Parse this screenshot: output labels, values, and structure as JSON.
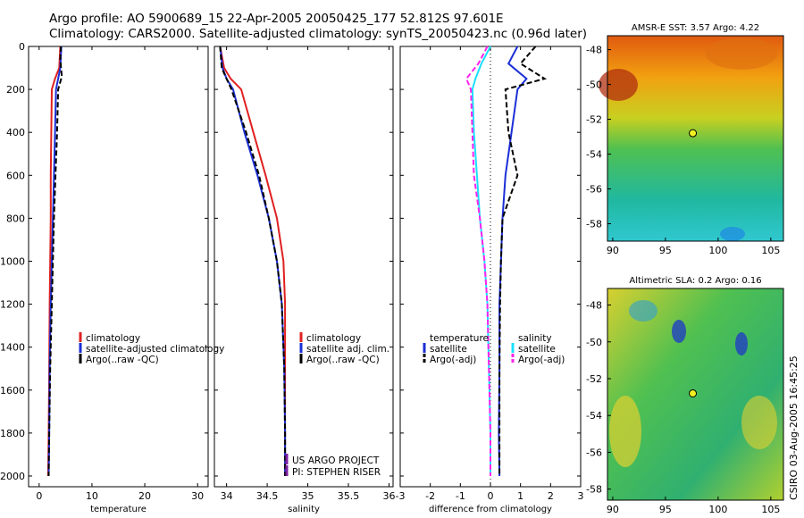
{
  "header": {
    "line1": "Argo profile: AO 5900689_15 22-Apr-2005 20050425_177 52.812S 97.601E",
    "line2": "Climatology: CARS2000. Satellite-adjusted climatology: synTS_20050423.nc (0.96d later)"
  },
  "credit": "CSIRO 03-Aug-2005 16:45:25",
  "colors": {
    "climatology": "#e02020",
    "satellite": "#1a2fd6",
    "argo": "#000000",
    "salinity_sat": "#19e0ff",
    "argo_sal": "#ff22ee",
    "project": "#7a1fa0"
  },
  "chart_data": [
    {
      "type": "line",
      "xlabel": "temperature",
      "ylim": [
        2050,
        0
      ],
      "xlim": [
        -2,
        32
      ],
      "xticks": [
        0,
        10,
        20,
        30
      ],
      "yticks": [
        0,
        200,
        400,
        600,
        800,
        1000,
        1200,
        1400,
        1600,
        1800,
        2000
      ],
      "legend": [
        "climatology",
        "satellite-adjusted climatology",
        "Argo(..raw -QC)"
      ],
      "series": [
        {
          "name": "climatology",
          "style": "solid",
          "color": "#e02020",
          "x": [
            4.0,
            3.8,
            3.0,
            2.4,
            2.3,
            2.2,
            2.2,
            2.1,
            2.0,
            1.9,
            1.8,
            1.7
          ],
          "y": [
            0,
            100,
            150,
            200,
            400,
            600,
            800,
            1000,
            1200,
            1500,
            1800,
            2000
          ]
        },
        {
          "name": "satellite-adjusted climatology",
          "style": "solid",
          "color": "#1a2fd6",
          "x": [
            4.2,
            4.0,
            3.6,
            3.2,
            3.0,
            2.8,
            2.6,
            2.4,
            2.2,
            2.0,
            1.9,
            1.8
          ],
          "y": [
            0,
            100,
            150,
            200,
            400,
            600,
            800,
            1000,
            1200,
            1500,
            1800,
            2000
          ]
        },
        {
          "name": "Argo(..raw -QC)",
          "style": "dashed",
          "color": "#000000",
          "x": [
            4.1,
            4.0,
            4.3,
            3.6,
            3.4,
            3.1,
            2.8,
            2.6,
            2.4,
            2.1,
            1.9,
            1.8
          ],
          "y": [
            0,
            60,
            140,
            200,
            400,
            600,
            800,
            1000,
            1200,
            1500,
            1800,
            2000
          ]
        }
      ]
    },
    {
      "type": "line",
      "xlabel": "salinity",
      "ylim": [
        2050,
        0
      ],
      "xlim": [
        33.85,
        36.05
      ],
      "xticks": [
        34,
        34.5,
        35,
        35.5,
        36
      ],
      "legend": [
        "climatology",
        "satellite adj. clim.",
        "Argo(..raw -QC)"
      ],
      "annotation": [
        "US ARGO PROJECT",
        "PI: STEPHEN RISER"
      ],
      "series": [
        {
          "name": "climatology",
          "style": "solid",
          "color": "#e02020",
          "x": [
            33.92,
            33.97,
            34.05,
            34.18,
            34.33,
            34.48,
            34.62,
            34.7,
            34.72,
            34.72,
            34.72,
            34.72
          ],
          "y": [
            0,
            100,
            150,
            200,
            400,
            600,
            800,
            1000,
            1200,
            1500,
            1800,
            2000
          ]
        },
        {
          "name": "satellite adj. clim.",
          "style": "solid",
          "color": "#1a2fd6",
          "x": [
            33.92,
            33.95,
            34.0,
            34.08,
            34.22,
            34.38,
            34.52,
            34.62,
            34.68,
            34.71,
            34.72,
            34.72
          ],
          "y": [
            0,
            100,
            150,
            200,
            400,
            600,
            800,
            1000,
            1200,
            1500,
            1800,
            2000
          ]
        },
        {
          "name": "Argo(..raw -QC)",
          "style": "dashed",
          "color": "#000000",
          "x": [
            33.92,
            33.94,
            34.0,
            34.06,
            34.24,
            34.4,
            34.52,
            34.62,
            34.68,
            34.71,
            34.72,
            34.72
          ],
          "y": [
            0,
            100,
            150,
            200,
            400,
            600,
            800,
            1000,
            1200,
            1500,
            1800,
            2000
          ]
        }
      ]
    },
    {
      "type": "line",
      "xlabel": "difference from climatology",
      "ylim": [
        2050,
        0
      ],
      "xlim": [
        -3,
        3
      ],
      "xticks": [
        -3,
        -2,
        -1,
        0,
        1,
        2,
        3
      ],
      "legend_left": [
        "temperature",
        "satellite",
        "Argo(-adj)"
      ],
      "legend_right": [
        "salinity",
        "satellite",
        "Argo(-adj)"
      ],
      "series": [
        {
          "name": "satellite",
          "group": "temperature",
          "style": "solid",
          "color": "#1a2fd6",
          "x": [
            0.9,
            0.6,
            1.2,
            0.9,
            0.7,
            0.5,
            0.4,
            0.35,
            0.3,
            0.3,
            0.28,
            0.3
          ],
          "y": [
            0,
            80,
            150,
            200,
            400,
            600,
            800,
            1000,
            1200,
            1500,
            1800,
            2000
          ]
        },
        {
          "name": "Argo(-adj)",
          "group": "temperature",
          "style": "dashed",
          "color": "#000000",
          "x": [
            1.5,
            1.0,
            1.8,
            0.5,
            0.6,
            0.9,
            0.4,
            0.35,
            0.32,
            0.3,
            0.3,
            0.3
          ],
          "y": [
            0,
            80,
            150,
            200,
            400,
            600,
            800,
            1000,
            1200,
            1500,
            1800,
            2000
          ]
        },
        {
          "name": "satellite",
          "group": "salinity",
          "style": "solid",
          "color": "#19e0ff",
          "x": [
            0.0,
            -0.3,
            -0.5,
            -0.6,
            -0.55,
            -0.45,
            -0.35,
            -0.2,
            -0.1,
            -0.05,
            0.0,
            0.0
          ],
          "y": [
            0,
            80,
            150,
            200,
            400,
            600,
            800,
            1000,
            1200,
            1500,
            1800,
            2000
          ]
        },
        {
          "name": "Argo(-adj)",
          "group": "salinity",
          "style": "dashed",
          "color": "#ff22ee",
          "x": [
            -0.1,
            -0.4,
            -0.8,
            -0.65,
            -0.6,
            -0.55,
            -0.35,
            -0.2,
            -0.1,
            -0.05,
            0.0,
            0.0
          ],
          "y": [
            0,
            80,
            150,
            200,
            400,
            600,
            800,
            1000,
            1200,
            1500,
            1800,
            2000
          ]
        }
      ]
    },
    {
      "type": "heatmap",
      "title": "AMSR-E SST: 3.57 Argo: 4.22",
      "xlim": [
        89.5,
        106.2
      ],
      "ylim": [
        -59,
        -47.2
      ],
      "xticks": [
        90,
        95,
        100,
        105
      ],
      "yticks": [
        -48,
        -50,
        -52,
        -54,
        -56,
        -58
      ],
      "marker": {
        "lon": 97.6,
        "lat": -52.8
      }
    },
    {
      "type": "heatmap",
      "title": "Altimetric SLA: 0.2 Argo: 0.16",
      "xlim": [
        89.5,
        106.2
      ],
      "ylim": [
        -58.6,
        -47.1
      ],
      "xticks": [
        90,
        95,
        100,
        105
      ],
      "yticks": [
        -48,
        -50,
        -52,
        -54,
        -56,
        -58
      ],
      "marker": {
        "lon": 97.6,
        "lat": -52.8
      }
    }
  ]
}
